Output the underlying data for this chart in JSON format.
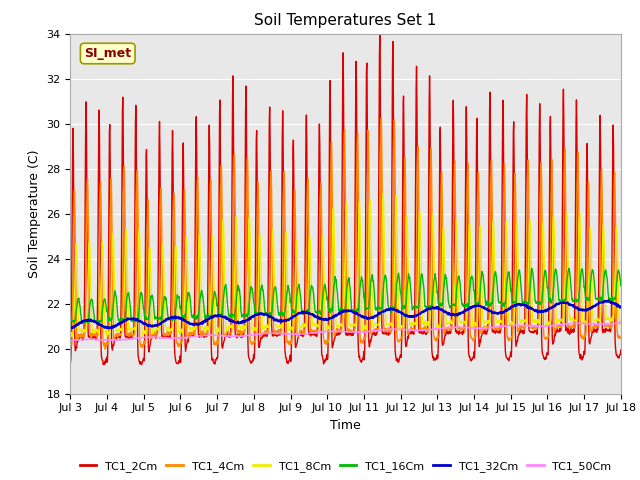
{
  "title": "Soil Temperatures Set 1",
  "xlabel": "Time",
  "ylabel": "Soil Temperature (C)",
  "ylim": [
    18,
    34
  ],
  "xlim": [
    0,
    15
  ],
  "x_tick_labels": [
    "Jul 3",
    "Jul 4",
    "Jul 5",
    "Jul 6",
    "Jul 7",
    "Jul 8",
    "Jul 9",
    "Jul 10",
    "Jul 11",
    "Jul 12",
    "Jul 13",
    "Jul 14",
    "Jul 15",
    "Jul 16",
    "Jul 17",
    "Jul 18"
  ],
  "annotation": "SI_met",
  "bg_color": "#e8e8e8",
  "fig_bg": "#ffffff",
  "series": [
    {
      "label": "TC1_2Cm",
      "color": "#dd0000",
      "lw": 1.0
    },
    {
      "label": "TC1_4Cm",
      "color": "#ff8800",
      "lw": 1.0
    },
    {
      "label": "TC1_8Cm",
      "color": "#eeee00",
      "lw": 1.0
    },
    {
      "label": "TC1_16Cm",
      "color": "#00bb00",
      "lw": 1.0
    },
    {
      "label": "TC1_32Cm",
      "color": "#0000cc",
      "lw": 1.5
    },
    {
      "label": "TC1_50Cm",
      "color": "#ff88ff",
      "lw": 1.0
    }
  ],
  "grid_color": "#ffffff",
  "title_fontsize": 11,
  "label_fontsize": 9,
  "tick_fontsize": 8,
  "legend_fontsize": 8
}
